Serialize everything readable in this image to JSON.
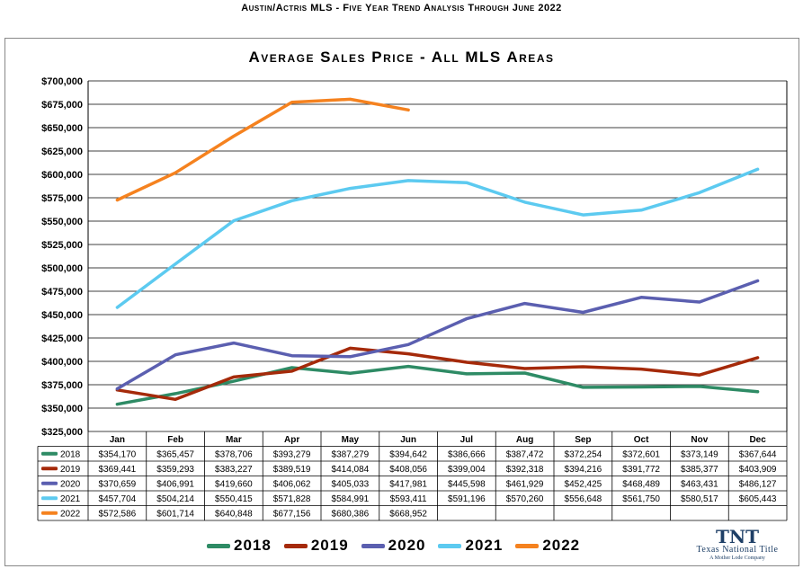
{
  "page": {
    "top_title": "Austin/Actris MLS - Five Year Trend Analysis Through June 2022"
  },
  "logo": {
    "mark": "TNT",
    "name": "Texas National Title",
    "sub": "A Mother Lode Company"
  },
  "chart_data": {
    "type": "line",
    "title": "Average Sales Price - All MLS Areas",
    "xlabel": "",
    "ylabel": "",
    "ylim": [
      325000,
      700000
    ],
    "ytick_step": 25000,
    "grid": true,
    "legend_placement": "bottom",
    "categories": [
      "Jan",
      "Feb",
      "Mar",
      "Apr",
      "May",
      "Jun",
      "Jul",
      "Aug",
      "Sep",
      "Oct",
      "Nov",
      "Dec"
    ],
    "series": [
      {
        "name": "2018",
        "color": "#2e8b65",
        "values": [
          354170,
          365457,
          378706,
          393279,
          387279,
          394642,
          386666,
          387472,
          372254,
          372601,
          373149,
          367644
        ]
      },
      {
        "name": "2019",
        "color": "#a52a0a",
        "values": [
          369441,
          359293,
          383227,
          389519,
          414084,
          408056,
          399004,
          392318,
          394216,
          391772,
          385377,
          403909
        ]
      },
      {
        "name": "2020",
        "color": "#5b5fb0",
        "values": [
          370659,
          406991,
          419660,
          406062,
          405033,
          417981,
          445598,
          461929,
          452425,
          468489,
          463431,
          486127
        ]
      },
      {
        "name": "2021",
        "color": "#5ccaf0",
        "values": [
          457704,
          504214,
          550415,
          571828,
          584991,
          593411,
          591196,
          570260,
          556648,
          561750,
          580517,
          605443
        ]
      },
      {
        "name": "2022",
        "color": "#f5821f",
        "values": [
          572586,
          601714,
          640848,
          677156,
          680386,
          668952,
          null,
          null,
          null,
          null,
          null,
          null
        ]
      }
    ]
  }
}
